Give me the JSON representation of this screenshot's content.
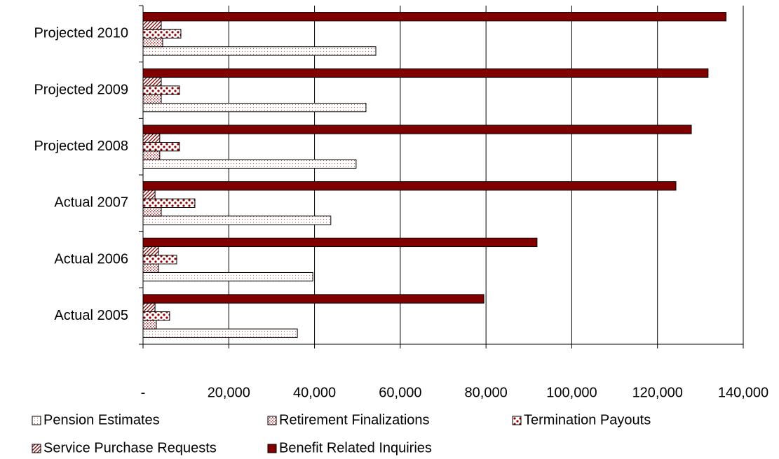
{
  "chart_data": {
    "type": "hbar",
    "categories": [
      "Actual 2005",
      "Actual 2006",
      "Actual 2007",
      "Projected 2008",
      "Projected 2009",
      "Projected 2010"
    ],
    "series": [
      {
        "name": "Pension Estimates",
        "color": "#c0504d",
        "values": [
          36000,
          39600,
          43800,
          49700,
          52000,
          54300
        ]
      },
      {
        "name": "Retirement Finalizations",
        "color": "#a03030",
        "values": [
          3100,
          3600,
          4250,
          3900,
          4250,
          4580
        ]
      },
      {
        "name": "Termination Payouts",
        "color": "#900000",
        "values": [
          6200,
          7850,
          12100,
          8500,
          8500,
          8830
        ]
      },
      {
        "name": "Service Purchase Requests",
        "color": "#800000",
        "values": [
          2800,
          3600,
          2800,
          3900,
          4250,
          4250
        ]
      },
      {
        "name": "Benefit Related Inquiries",
        "color": "#800000",
        "values": [
          79500,
          91900,
          124300,
          127900,
          131800,
          136000
        ]
      }
    ],
    "xlim": [
      0,
      140000
    ],
    "xticks": [
      {
        "value": 0,
        "label": "-"
      },
      {
        "value": 20000,
        "label": "20,000"
      },
      {
        "value": 40000,
        "label": "40,000"
      },
      {
        "value": 60000,
        "label": "60,000"
      },
      {
        "value": 80000,
        "label": "80,000"
      },
      {
        "value": 100000,
        "label": "100,000"
      },
      {
        "value": 120000,
        "label": "120,000"
      },
      {
        "value": 140000,
        "label": "140,000"
      }
    ],
    "grid": true,
    "legend": "bottom"
  }
}
